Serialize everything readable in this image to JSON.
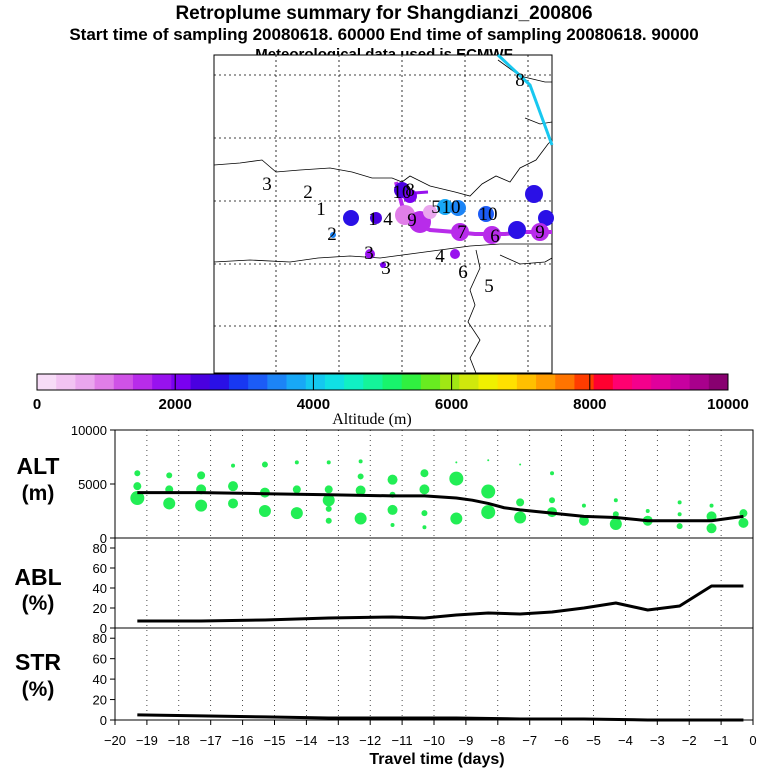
{
  "header": {
    "title": "Retroplume summary for Shangdianzi_200806",
    "sampling": "Start time of sampling 20080618. 60000     End time of sampling 20080618. 90000",
    "met": "Meteorological data used is ECMWF"
  },
  "colorbar": {
    "ticks": [
      "0",
      "2000",
      "4000",
      "6000",
      "8000",
      "10000"
    ],
    "label": "Altitude (m)",
    "colors": [
      "#f7dcf7",
      "#f2c3f2",
      "#eaa6ee",
      "#e07ee8",
      "#cf52e6",
      "#b82cea",
      "#9812ee",
      "#7a00f0",
      "#4a00e0",
      "#2a10e6",
      "#1838f2",
      "#1c5cf6",
      "#1c84f6",
      "#18a8f6",
      "#14c8f0",
      "#10e0e4",
      "#10f0c4",
      "#14f49a",
      "#18f46c",
      "#30f040",
      "#68ec20",
      "#a0e814",
      "#d0e80c",
      "#f0f000",
      "#ffe000",
      "#ffc000",
      "#ff9c00",
      "#ff7400",
      "#ff3c00",
      "#ff0030",
      "#ff0070",
      "#f4008c",
      "#e0009c",
      "#c800a0",
      "#a8008c",
      "#880070"
    ]
  },
  "map": {
    "labels": [
      "8",
      "3",
      "2",
      "1",
      "2",
      "1",
      "4",
      "10",
      "9",
      "5",
      "10",
      "10",
      "7",
      "6",
      "9",
      "3",
      "4",
      "3",
      "6",
      "5",
      "8"
    ]
  },
  "panels": {
    "alt": {
      "title": "ALT",
      "unit": "(m)"
    },
    "abl": {
      "title": "ABL",
      "unit": "(%)"
    },
    "str": {
      "title": "STR",
      "unit": "(%)"
    }
  },
  "xaxis": {
    "label": "Travel time (days)"
  },
  "chart_data": [
    {
      "type": "line",
      "title": "ALT",
      "ylabel": "(m)",
      "xlabel": "Travel time (days)",
      "xlim": [
        -20,
        0
      ],
      "ylim": [
        0,
        10000
      ],
      "yticks": [
        0,
        5000,
        10000
      ],
      "x_ticks": [
        -20,
        -19,
        -18,
        -17,
        -16,
        -15,
        -14,
        -13,
        -12,
        -11,
        -10,
        -9,
        -8,
        -7,
        -6,
        -5,
        -4,
        -3,
        -2,
        -1,
        0
      ],
      "x": [
        -19.3,
        -17.3,
        -15.3,
        -13.3,
        -11.3,
        -10.3,
        -9.3,
        -8.8,
        -8.3,
        -7.8,
        -7.3,
        -6.3,
        -5.3,
        -4.3,
        -3.3,
        -2.3,
        -1.3,
        -0.3
      ],
      "values": [
        4200,
        4200,
        4100,
        4000,
        3900,
        3900,
        3700,
        3500,
        3200,
        2800,
        2600,
        2300,
        2000,
        1900,
        1600,
        1600,
        1600,
        2000
      ],
      "scatter_color": "#22ee55",
      "scatter": [
        {
          "x": -19.3,
          "y": 3700,
          "s": 7
        },
        {
          "x": -19.3,
          "y": 4800,
          "s": 4
        },
        {
          "x": -19.3,
          "y": 6000,
          "s": 3
        },
        {
          "x": -18.3,
          "y": 3200,
          "s": 6
        },
        {
          "x": -18.3,
          "y": 4500,
          "s": 4
        },
        {
          "x": -18.3,
          "y": 5800,
          "s": 3
        },
        {
          "x": -17.3,
          "y": 3000,
          "s": 6
        },
        {
          "x": -17.3,
          "y": 4500,
          "s": 5
        },
        {
          "x": -17.3,
          "y": 5800,
          "s": 4
        },
        {
          "x": -16.3,
          "y": 3200,
          "s": 5
        },
        {
          "x": -16.3,
          "y": 4800,
          "s": 5
        },
        {
          "x": -16.3,
          "y": 6700,
          "s": 2
        },
        {
          "x": -15.3,
          "y": 2500,
          "s": 6
        },
        {
          "x": -15.3,
          "y": 4200,
          "s": 5
        },
        {
          "x": -15.3,
          "y": 6800,
          "s": 3
        },
        {
          "x": -14.3,
          "y": 2300,
          "s": 6
        },
        {
          "x": -14.3,
          "y": 4500,
          "s": 4
        },
        {
          "x": -14.3,
          "y": 7000,
          "s": 2
        },
        {
          "x": -13.3,
          "y": 1600,
          "s": 3
        },
        {
          "x": -13.3,
          "y": 2700,
          "s": 3
        },
        {
          "x": -13.3,
          "y": 3500,
          "s": 6
        },
        {
          "x": -13.3,
          "y": 4500,
          "s": 4
        },
        {
          "x": -13.3,
          "y": 7000,
          "s": 2
        },
        {
          "x": -12.3,
          "y": 1800,
          "s": 6
        },
        {
          "x": -12.3,
          "y": 4400,
          "s": 5
        },
        {
          "x": -12.3,
          "y": 5700,
          "s": 3
        },
        {
          "x": -12.3,
          "y": 7100,
          "s": 2
        },
        {
          "x": -11.3,
          "y": 1200,
          "s": 2
        },
        {
          "x": -11.3,
          "y": 2600,
          "s": 5
        },
        {
          "x": -11.3,
          "y": 4000,
          "s": 3
        },
        {
          "x": -11.3,
          "y": 5400,
          "s": 5
        },
        {
          "x": -10.3,
          "y": 1000,
          "s": 2
        },
        {
          "x": -10.3,
          "y": 2300,
          "s": 3
        },
        {
          "x": -10.3,
          "y": 4500,
          "s": 5
        },
        {
          "x": -10.3,
          "y": 6000,
          "s": 4
        },
        {
          "x": -9.3,
          "y": 1800,
          "s": 6
        },
        {
          "x": -9.3,
          "y": 5500,
          "s": 7
        },
        {
          "x": -9.3,
          "y": 7000,
          "s": 1
        },
        {
          "x": -8.3,
          "y": 2400,
          "s": 7
        },
        {
          "x": -8.3,
          "y": 4300,
          "s": 7
        },
        {
          "x": -8.3,
          "y": 7200,
          "s": 1
        },
        {
          "x": -7.3,
          "y": 1900,
          "s": 6
        },
        {
          "x": -7.3,
          "y": 3300,
          "s": 4
        },
        {
          "x": -7.3,
          "y": 6800,
          "s": 1
        },
        {
          "x": -6.3,
          "y": 2400,
          "s": 5
        },
        {
          "x": -6.3,
          "y": 3500,
          "s": 3
        },
        {
          "x": -6.3,
          "y": 6000,
          "s": 2
        },
        {
          "x": -5.3,
          "y": 1600,
          "s": 5
        },
        {
          "x": -5.3,
          "y": 3000,
          "s": 2
        },
        {
          "x": -4.3,
          "y": 1300,
          "s": 6
        },
        {
          "x": -4.3,
          "y": 2200,
          "s": 3
        },
        {
          "x": -4.3,
          "y": 3500,
          "s": 2
        },
        {
          "x": -3.3,
          "y": 1600,
          "s": 5
        },
        {
          "x": -3.3,
          "y": 2500,
          "s": 2
        },
        {
          "x": -2.3,
          "y": 1100,
          "s": 3
        },
        {
          "x": -2.3,
          "y": 2200,
          "s": 2
        },
        {
          "x": -2.3,
          "y": 3300,
          "s": 2
        },
        {
          "x": -1.3,
          "y": 900,
          "s": 5
        },
        {
          "x": -1.3,
          "y": 2000,
          "s": 5
        },
        {
          "x": -1.3,
          "y": 3000,
          "s": 2
        },
        {
          "x": -0.3,
          "y": 1400,
          "s": 5
        },
        {
          "x": -0.3,
          "y": 2300,
          "s": 4
        }
      ]
    },
    {
      "type": "line",
      "title": "ABL",
      "ylabel": "(%)",
      "xlim": [
        -20,
        0
      ],
      "ylim": [
        0,
        90
      ],
      "yticks": [
        0,
        20,
        40,
        60,
        80
      ],
      "x": [
        -19.3,
        -17.3,
        -15.3,
        -13.3,
        -11.3,
        -10.3,
        -9.3,
        -8.3,
        -7.3,
        -6.3,
        -5.3,
        -4.3,
        -3.3,
        -2.3,
        -1.3,
        -0.3
      ],
      "values": [
        7,
        7,
        8,
        10,
        11,
        10,
        13,
        15,
        14,
        16,
        20,
        25,
        18,
        22,
        42,
        42
      ]
    },
    {
      "type": "line",
      "title": "STR",
      "ylabel": "(%)",
      "xlim": [
        -20,
        0
      ],
      "ylim": [
        0,
        90
      ],
      "yticks": [
        0,
        20,
        40,
        60,
        80
      ],
      "x": [
        -19.3,
        -17.3,
        -15.3,
        -13.3,
        -11.3,
        -9.3,
        -7.3,
        -5.3,
        -3.3,
        -1.3,
        -0.3
      ],
      "values": [
        5,
        4,
        3,
        2,
        2,
        2,
        1,
        1,
        0,
        0,
        0
      ]
    }
  ]
}
